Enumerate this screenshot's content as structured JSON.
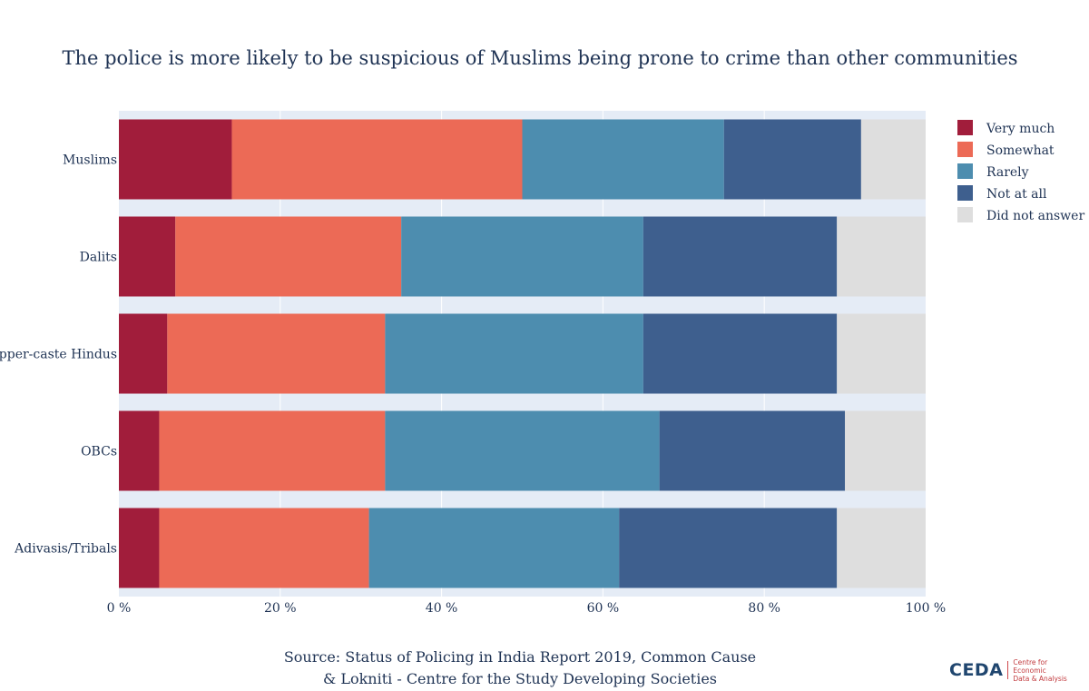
{
  "title": "The police is more likely to be suspicious of Muslims being prone to crime than other communities",
  "source_lines": [
    "Source: Status of Policing in India Report 2019, Common Cause",
    "& Lokniti - Centre for the Study Developing Societies"
  ],
  "logo": {
    "word": "CEDA",
    "tagline_lines": [
      "Centre for Economic",
      "Data & Analysis"
    ]
  },
  "colors": {
    "plot_bg": "#e5ecf6",
    "grid": "#ffffff",
    "text": "#1f3354"
  },
  "chart_data": {
    "type": "bar",
    "orientation": "horizontal",
    "barmode": "stack",
    "title": "The police is more likely to be suspicious of Muslims being prone to crime than other communities",
    "xlabel": "",
    "ylabel": "",
    "xlim": [
      0,
      100
    ],
    "xticks": [
      0,
      20,
      40,
      60,
      80,
      100
    ],
    "xtick_suffix": " %",
    "grid": true,
    "legend_position": "right",
    "categories": [
      "Muslims",
      "Dalits",
      "Upper-caste Hindus",
      "OBCs",
      "Adivasis/Tribals"
    ],
    "series": [
      {
        "name": "Very much",
        "color": "#a11d3b",
        "values": [
          14,
          7,
          6,
          5,
          5
        ]
      },
      {
        "name": "Somewhat",
        "color": "#ec6a56",
        "values": [
          36,
          28,
          27,
          28,
          26
        ]
      },
      {
        "name": "Rarely",
        "color": "#4d8daf",
        "values": [
          25,
          30,
          32,
          34,
          31
        ]
      },
      {
        "name": "Not at all",
        "color": "#3e5f8e",
        "values": [
          17,
          24,
          24,
          23,
          27
        ]
      },
      {
        "name": "Did not answer",
        "color": "#dedede",
        "values": [
          8,
          11,
          11,
          10,
          11
        ]
      }
    ]
  }
}
